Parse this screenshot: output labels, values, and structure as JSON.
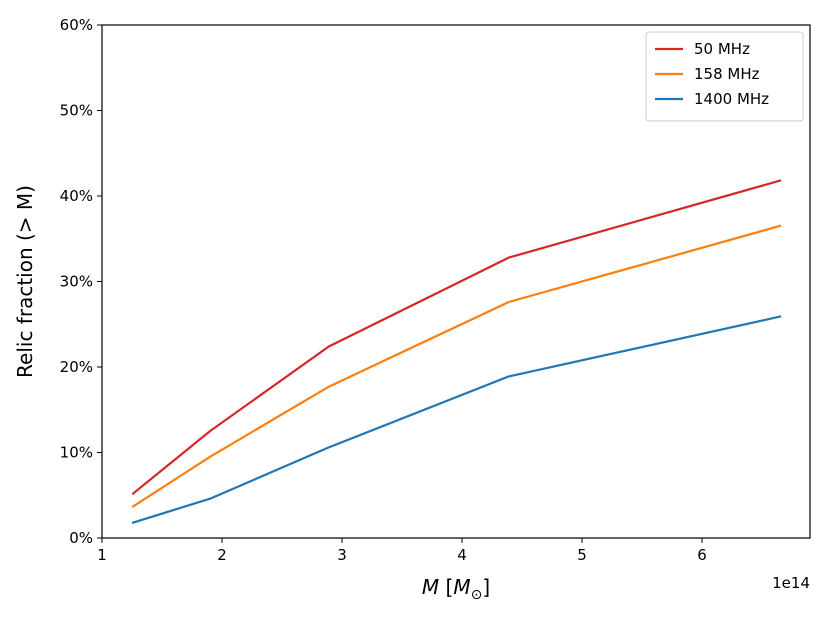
{
  "chart_data": {
    "type": "line",
    "ylabel": "Relic fraction (> M)",
    "xlabel": {
      "symbol": "M",
      "open_bracket": "[",
      "unit_symbol": "M",
      "unit_subscript": "⊙",
      "close_bracket": "]"
    },
    "x_offset_label": "1e14",
    "xlim": [
      1.0,
      6.9
    ],
    "ylim": [
      0,
      60
    ],
    "x_ticks": [
      1,
      2,
      3,
      4,
      5,
      6
    ],
    "x_tick_labels": [
      "1",
      "2",
      "3",
      "4",
      "5",
      "6"
    ],
    "y_ticks": [
      0,
      10,
      20,
      30,
      40,
      50,
      60
    ],
    "y_tick_labels": [
      "0%",
      "10%",
      "20%",
      "30%",
      "40%",
      "50%",
      "60%"
    ],
    "grid": false,
    "legend_position": "top-right",
    "x": [
      1.26,
      1.9,
      2.89,
      4.39,
      6.65
    ],
    "series": [
      {
        "name": "50 MHz",
        "color": "#d62728",
        "values": [
          5.2,
          12.5,
          22.4,
          32.8,
          41.8
        ]
      },
      {
        "name": "158 MHz",
        "color": "#ff7f0e",
        "values": [
          3.7,
          9.5,
          17.7,
          27.6,
          36.5
        ]
      },
      {
        "name": "1400 MHz",
        "color": "#1f77b4",
        "values": [
          1.8,
          4.6,
          10.6,
          18.9,
          25.9
        ]
      }
    ]
  }
}
